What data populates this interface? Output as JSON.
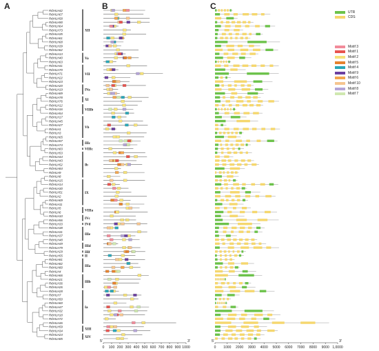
{
  "panels": {
    "a": "A",
    "b": "B",
    "c": "C"
  },
  "genes": [
    "RrbHLH42",
    "RrbHLH67",
    "RrbHLH58",
    "RrbHLH90",
    "RrbHLH64",
    "RrbHLH73",
    "RrbHLH35",
    "RrbHLH61",
    "RrbHLH68",
    "RrbHLH39",
    "RrbHLH62",
    "RrbHLH13",
    "RrbHLH40",
    "RrbHLH63",
    "RrbHLH41",
    "RrbHLH70",
    "RrbHLH71",
    "RrbHLH22",
    "RrbHLH23",
    "RrbHLH20",
    "RrbHLH19",
    "RrbHLH89",
    "RrbHLH78",
    "RrbHLH76",
    "RrbHLH12",
    "RrbHLH16",
    "RrbHLH54",
    "RrbHLH17",
    "RrbHLH45",
    "RrbHLH27",
    "RrbHLH1",
    "RrbHLH3",
    "RrbHLH65",
    "RrbHLH57",
    "RrbHLH74",
    "RrbHLH83",
    "RrbHLH53",
    "RrbHLH44",
    "RrbHLH43",
    "RrbHLH52",
    "RrbHLH84",
    "RrbHLH9",
    "RrbHLH8",
    "RrbHLH15",
    "RrbHLH14",
    "RrbHLH30",
    "RrbHLH51",
    "RrbHLH2",
    "RrbHLH69",
    "RrbHLH11",
    "RrbHLH5",
    "RrbHLH6",
    "RrbHLH10",
    "RrbHLH56",
    "RrbHLH33",
    "RrbHLH38",
    "RrbHLH31",
    "RrbHLH37",
    "RrbHLH48",
    "RrbHLH49",
    "RrbHLH79",
    "RrbHLH29",
    "RrbHLH55",
    "RrbHLH81",
    "RrbHLH82",
    "RrbHLH80",
    "RrbHLH4",
    "RrbHLH66",
    "RrbHLH21",
    "RrbHLH36",
    "RrbHLH26",
    "RrbHLH28",
    "RrbHLH7",
    "RrbHLH50",
    "RrbHLH60",
    "RrbHLH47",
    "RrbHLH32",
    "RrbHLH18",
    "RrbHLH72",
    "RrbHLH46",
    "RrbHLH59",
    "RrbHLH34",
    "RrbHLH24",
    "RrbHLH85"
  ],
  "subfamilies": [
    {
      "label": "XII",
      "first": 0,
      "last": 10
    },
    {
      "label": "Va",
      "first": 11,
      "last": 13
    },
    {
      "label": "VII",
      "first": 14,
      "last": 18
    },
    {
      "label": "IVa",
      "first": 19,
      "last": 21
    },
    {
      "label": "XI",
      "first": 22,
      "last": 23
    },
    {
      "label": "VIIIb",
      "first": 24,
      "last": 26
    },
    {
      "label": "Vb",
      "first": 27,
      "last": 32
    },
    {
      "label": "IIIc",
      "first": 33,
      "last": 34
    },
    {
      "label": "VIIIc",
      "first": 35,
      "last": 35
    },
    {
      "label": "Ib",
      "first": 36,
      "last": 42
    },
    {
      "label": "IX",
      "first": 43,
      "last": 49
    },
    {
      "label": "VIIIa",
      "first": 50,
      "last": 51
    },
    {
      "label": "IVc",
      "first": 52,
      "last": 53
    },
    {
      "label": "IVd",
      "first": 54,
      "last": 54
    },
    {
      "label": "IIIe",
      "first": 55,
      "last": 58
    },
    {
      "label": "IIId",
      "first": 59,
      "last": 60
    },
    {
      "label": "IIIf",
      "first": 61,
      "last": 61
    },
    {
      "label": "II",
      "first": 62,
      "last": 62
    },
    {
      "label": "IIIa",
      "first": 63,
      "last": 66
    },
    {
      "label": "IIIb",
      "first": 67,
      "last": 70
    },
    {
      "label": "Ia",
      "first": 71,
      "last": 79
    },
    {
      "label": "XIII",
      "first": 80,
      "last": 81
    },
    {
      "label": "XIV",
      "first": 82,
      "last": 83
    }
  ],
  "axis_b": {
    "start_label": "5'",
    "end_label": "3'",
    "ticks": [
      "0",
      "100",
      "200",
      "300",
      "400",
      "500",
      "600",
      "700",
      "800",
      "900",
      "1000"
    ]
  },
  "axis_c": {
    "start_label": "5'",
    "end_label": "3'",
    "ticks": [
      "0",
      "1000",
      "2000",
      "3000",
      "4000",
      "5000",
      "6000",
      "7000",
      "8000",
      "9000",
      "1,0000"
    ]
  },
  "legend_c": [
    {
      "label": "UTR",
      "color": "#6cc24a"
    },
    {
      "label": "CDS",
      "color": "#f5d76e"
    }
  ],
  "legend_motif": [
    {
      "label": "Motif 3",
      "color": "#f28b9a"
    },
    {
      "label": "Motif 1",
      "color": "#e8544f"
    },
    {
      "label": "Motif 2",
      "color": "#f6e27a"
    },
    {
      "label": "Motif 5",
      "color": "#e6822e"
    },
    {
      "label": "Motif 4",
      "color": "#2aa7b8"
    },
    {
      "label": "Motif 9",
      "color": "#6b3fa0"
    },
    {
      "label": "Motif 6",
      "color": "#f3a64f"
    },
    {
      "label": "Motif 10",
      "color": "#f5c58f"
    },
    {
      "label": "Motif 8",
      "color": "#b4a4d6"
    },
    {
      "label": "Motif 7",
      "color": "#cfe8b0"
    }
  ]
}
